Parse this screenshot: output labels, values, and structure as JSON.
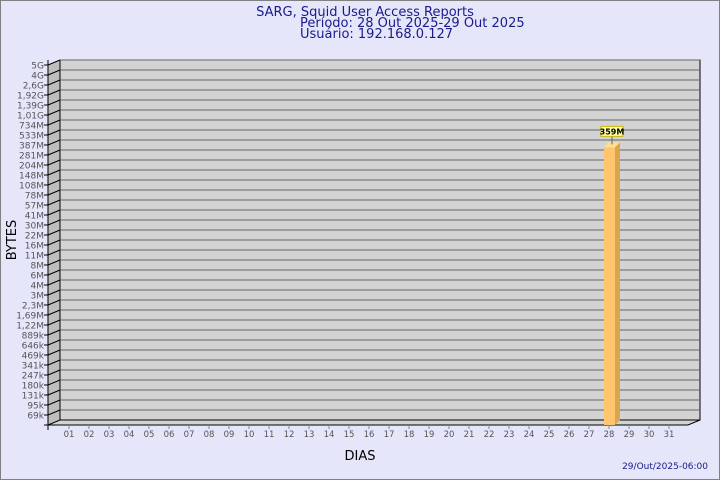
{
  "chart_data": {
    "type": "bar",
    "title": "SARG, Squid User Access Reports",
    "subtitle_lines": [
      "Período: 28 Out 2025-29 Out 2025",
      "Usuário: 192.168.0.127"
    ],
    "xlabel": "DIAS",
    "ylabel": "BYTES",
    "y_scale": "log",
    "grid": true,
    "categories": [
      "01",
      "02",
      "03",
      "04",
      "05",
      "06",
      "07",
      "08",
      "09",
      "10",
      "11",
      "12",
      "13",
      "14",
      "15",
      "16",
      "17",
      "18",
      "19",
      "20",
      "21",
      "22",
      "23",
      "24",
      "25",
      "26",
      "27",
      "28",
      "29",
      "30",
      "31"
    ],
    "y_tick_labels": [
      "5G",
      "4G",
      "2,6G",
      "1,92G",
      "1,39G",
      "1,01G",
      "734M",
      "533M",
      "387M",
      "281M",
      "204M",
      "148M",
      "108M",
      "78M",
      "57M",
      "41M",
      "30M",
      "22M",
      "16M",
      "11M",
      "8M",
      "6M",
      "4M",
      "3M",
      "2,3M",
      "1,69M",
      "1,22M",
      "889k",
      "646k",
      "469k",
      "341k",
      "247k",
      "180k",
      "131k",
      "95k",
      "69k"
    ],
    "bars": [
      {
        "category": "28",
        "value": 359000000,
        "label": "359M"
      }
    ],
    "bar_color": "#ffc66e",
    "footer": "29/Out/2025-06:00"
  },
  "colors": {
    "background": "#e6e6fa",
    "title": "#1a1a8c",
    "wall": "#d3d3d3",
    "side_wall": "#bebebe"
  }
}
